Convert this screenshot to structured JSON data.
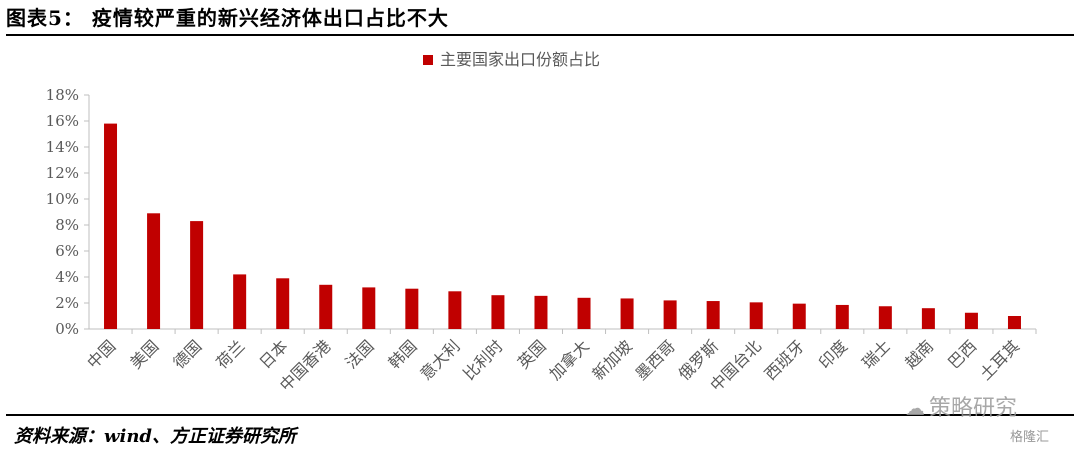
{
  "title": "图表5：  疫情较严重的新兴经济体出口占比不大",
  "source": "资料来源：wind、方正证券研究所",
  "watermark_main": "策略研究",
  "watermark_logo": "WeChat-icon",
  "watermark_corner": "格隆汇",
  "colors": {
    "bar": "#c00000",
    "axis": "#bfbfbf",
    "text": "#595959"
  },
  "chart_data": {
    "type": "bar",
    "categories": [
      "中国",
      "美国",
      "德国",
      "荷兰",
      "日本",
      "中国香港",
      "法国",
      "韩国",
      "意大利",
      "比利时",
      "英国",
      "加拿大",
      "新加坡",
      "墨西哥",
      "俄罗斯",
      "中国台北",
      "西班牙",
      "印度",
      "瑞士",
      "越南",
      "巴西",
      "土耳其"
    ],
    "series": [
      {
        "name": "主要国家出口份额占比",
        "values": [
          15.8,
          8.9,
          8.3,
          4.2,
          3.9,
          3.4,
          3.2,
          3.1,
          2.9,
          2.6,
          2.55,
          2.4,
          2.35,
          2.2,
          2.15,
          2.05,
          1.95,
          1.85,
          1.75,
          1.6,
          1.25,
          1.0
        ]
      }
    ],
    "yticks": [
      "0%",
      "2%",
      "4%",
      "6%",
      "8%",
      "10%",
      "12%",
      "14%",
      "16%",
      "18%"
    ],
    "ylim": [
      0,
      18
    ],
    "legend": "top-center",
    "grid": false
  }
}
